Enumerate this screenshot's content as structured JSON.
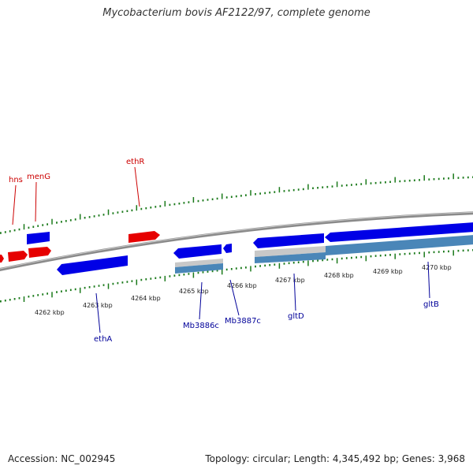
{
  "title": "Mycobacterium bovis AF2122/97, complete genome",
  "footer": {
    "accession": "Accession: NC_002945",
    "stats": "Topology: circular; Length: 4,345,492 bp; Genes: 3,968"
  },
  "colors": {
    "forward_gene": "#e60000",
    "reverse_gene": "#0000e6",
    "tick": "#1b7a1b",
    "backbone": "#808080",
    "feature_gray": "#c8c8c8",
    "feature_steel": "#4a86b8",
    "forward_label": "#cc0000",
    "reverse_label": "#000099"
  },
  "scale": {
    "unit": "kbp",
    "labels": [
      "4262 kbp",
      "4263 kbp",
      "4264 kbp",
      "4265 kbp",
      "4266 kbp",
      "4267 kbp",
      "4268 kbp",
      "4269 kbp",
      "4270 kbp"
    ]
  },
  "genes": {
    "forward": [
      "hns",
      "menG",
      "ethR"
    ],
    "reverse": [
      "ethA",
      "Mb3886c",
      "Mb3887c",
      "gltD",
      "gltB"
    ]
  }
}
